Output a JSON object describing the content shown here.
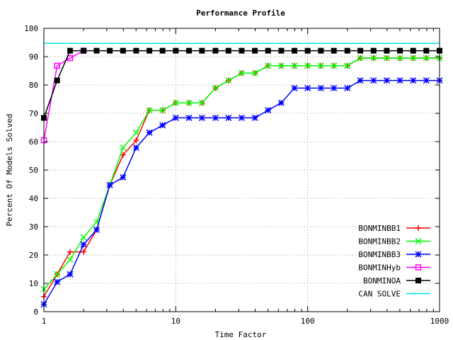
{
  "chart_data": {
    "type": "line",
    "title": "Performance Profile",
    "xlabel": "Time Factor",
    "ylabel": "Percent Of Models Solved",
    "x_scale": "log",
    "xlim": [
      1,
      1000
    ],
    "ylim": [
      0,
      100
    ],
    "x_ticks": [
      1,
      10,
      100,
      1000
    ],
    "y_ticks": [
      0,
      10,
      20,
      30,
      40,
      50,
      60,
      70,
      80,
      90,
      100
    ],
    "grid": true,
    "legend_position": "bottom-right",
    "series": [
      {
        "name": "BONMINBB1",
        "color": "#ff0000",
        "marker": "plus",
        "points": [
          [
            1,
            5.3
          ],
          [
            1.26,
            13.2
          ],
          [
            1.58,
            21.1
          ],
          [
            2,
            21.1
          ],
          [
            2.51,
            28.9
          ],
          [
            3.16,
            44.7
          ],
          [
            3.98,
            55.3
          ],
          [
            5.01,
            60.5
          ],
          [
            6.31,
            71.1
          ],
          [
            7.94,
            71.1
          ],
          [
            10,
            73.7
          ],
          [
            12.6,
            73.7
          ],
          [
            15.8,
            73.7
          ],
          [
            20,
            78.9
          ],
          [
            25.1,
            81.6
          ],
          [
            31.6,
            84.2
          ],
          [
            39.8,
            84.2
          ],
          [
            50.1,
            86.8
          ],
          [
            63.1,
            86.8
          ],
          [
            79.4,
            86.8
          ],
          [
            100,
            86.8
          ],
          [
            126,
            86.8
          ],
          [
            158,
            86.8
          ],
          [
            200,
            86.8
          ],
          [
            251,
            89.5
          ],
          [
            316,
            89.5
          ],
          [
            398,
            89.5
          ],
          [
            501,
            89.5
          ],
          [
            631,
            89.5
          ],
          [
            794,
            89.5
          ],
          [
            1000,
            89.5
          ]
        ]
      },
      {
        "name": "BONMINBB2",
        "color": "#00ff00",
        "marker": "cross",
        "points": [
          [
            1,
            7.9
          ],
          [
            1.26,
            13.2
          ],
          [
            1.58,
            18.4
          ],
          [
            2,
            26.3
          ],
          [
            2.51,
            31.6
          ],
          [
            3.16,
            44.7
          ],
          [
            3.98,
            57.9
          ],
          [
            5.01,
            63.2
          ],
          [
            6.31,
            71.1
          ],
          [
            7.94,
            71.1
          ],
          [
            10,
            73.7
          ],
          [
            12.6,
            73.7
          ],
          [
            15.8,
            73.7
          ],
          [
            20,
            78.9
          ],
          [
            25.1,
            81.6
          ],
          [
            31.6,
            84.2
          ],
          [
            39.8,
            84.2
          ],
          [
            50.1,
            86.8
          ],
          [
            63.1,
            86.8
          ],
          [
            79.4,
            86.8
          ],
          [
            100,
            86.8
          ],
          [
            126,
            86.8
          ],
          [
            158,
            86.8
          ],
          [
            200,
            86.8
          ],
          [
            251,
            89.5
          ],
          [
            316,
            89.5
          ],
          [
            398,
            89.5
          ],
          [
            501,
            89.5
          ],
          [
            631,
            89.5
          ],
          [
            794,
            89.5
          ],
          [
            1000,
            89.5
          ]
        ]
      },
      {
        "name": "BONMINBB3",
        "color": "#0000ff",
        "marker": "star",
        "points": [
          [
            1,
            2.6
          ],
          [
            1.26,
            10.5
          ],
          [
            1.58,
            13.2
          ],
          [
            2,
            23.7
          ],
          [
            2.51,
            28.9
          ],
          [
            3.16,
            44.7
          ],
          [
            3.98,
            47.4
          ],
          [
            5.01,
            57.9
          ],
          [
            6.31,
            63.2
          ],
          [
            7.94,
            65.8
          ],
          [
            10,
            68.4
          ],
          [
            12.6,
            68.4
          ],
          [
            15.8,
            68.4
          ],
          [
            20,
            68.4
          ],
          [
            25.1,
            68.4
          ],
          [
            31.6,
            68.4
          ],
          [
            39.8,
            68.4
          ],
          [
            50.1,
            71.1
          ],
          [
            63.1,
            73.7
          ],
          [
            79.4,
            78.9
          ],
          [
            100,
            78.9
          ],
          [
            126,
            78.9
          ],
          [
            158,
            78.9
          ],
          [
            200,
            78.9
          ],
          [
            251,
            81.6
          ],
          [
            316,
            81.6
          ],
          [
            398,
            81.6
          ],
          [
            501,
            81.6
          ],
          [
            631,
            81.6
          ],
          [
            794,
            81.6
          ],
          [
            1000,
            81.6
          ]
        ]
      },
      {
        "name": "BONMINHyb",
        "color": "#ff00ff",
        "marker": "square-open",
        "points": [
          [
            1,
            60.5
          ],
          [
            1.26,
            86.8
          ],
          [
            1.58,
            89.5
          ],
          [
            2,
            92.1
          ]
        ]
      },
      {
        "name": "BONMINOA",
        "color": "#000000",
        "marker": "square-filled",
        "points": [
          [
            1,
            68.4
          ],
          [
            1.26,
            81.6
          ],
          [
            1.58,
            92.1
          ],
          [
            2,
            92.1
          ],
          [
            2.51,
            92.1
          ],
          [
            3.16,
            92.1
          ],
          [
            3.98,
            92.1
          ],
          [
            5.01,
            92.1
          ],
          [
            6.31,
            92.1
          ],
          [
            7.94,
            92.1
          ],
          [
            10,
            92.1
          ],
          [
            12.6,
            92.1
          ],
          [
            15.8,
            92.1
          ],
          [
            20,
            92.1
          ],
          [
            25.1,
            92.1
          ],
          [
            31.6,
            92.1
          ],
          [
            39.8,
            92.1
          ],
          [
            50.1,
            92.1
          ],
          [
            63.1,
            92.1
          ],
          [
            79.4,
            92.1
          ],
          [
            100,
            92.1
          ],
          [
            126,
            92.1
          ],
          [
            158,
            92.1
          ],
          [
            200,
            92.1
          ],
          [
            251,
            92.1
          ],
          [
            316,
            92.1
          ],
          [
            398,
            92.1
          ],
          [
            501,
            92.1
          ],
          [
            631,
            92.1
          ],
          [
            794,
            92.1
          ],
          [
            1000,
            92.1
          ]
        ]
      },
      {
        "name": "CAN SOLVE",
        "color": "#00e5e5",
        "marker": "none",
        "points": [
          [
            1,
            94.7
          ],
          [
            1000,
            94.7
          ]
        ]
      }
    ]
  }
}
